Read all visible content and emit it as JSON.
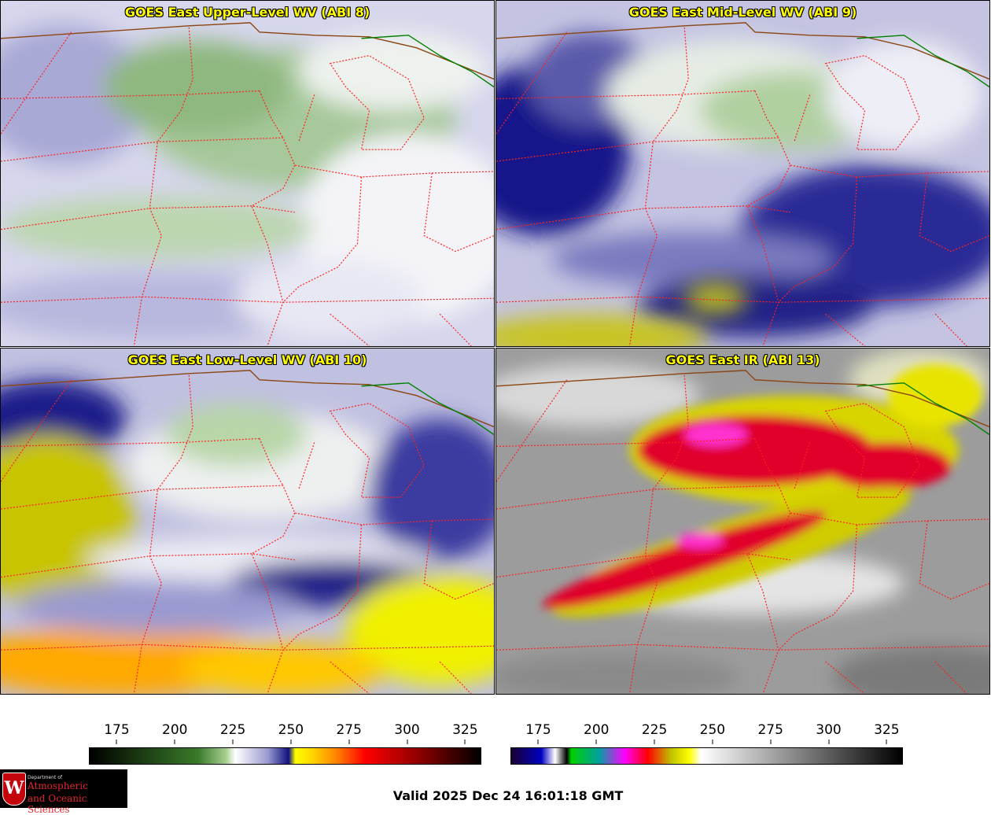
{
  "panels": [
    {
      "id": "ul",
      "title": "GOES East Upper-Level WV (ABI 8)"
    },
    {
      "id": "ml",
      "title": "GOES East Mid-Level WV (ABI 9)"
    },
    {
      "id": "ll",
      "title": "GOES East Low-Level WV (ABI 10)"
    },
    {
      "id": "ir",
      "title": "GOES East IR (ABI 13)"
    }
  ],
  "colorbars": {
    "wv": {
      "ticks": [
        "175",
        "200",
        "225",
        "250",
        "275",
        "300",
        "325"
      ],
      "tick_values": [
        175,
        200,
        225,
        250,
        275,
        300,
        325
      ],
      "range": [
        163,
        332
      ],
      "stops": [
        {
          "v": 163,
          "c": "#000000"
        },
        {
          "v": 185,
          "c": "#1b3a12"
        },
        {
          "v": 210,
          "c": "#3b7a2a"
        },
        {
          "v": 222,
          "c": "#a8d090"
        },
        {
          "v": 226,
          "c": "#ffffff"
        },
        {
          "v": 240,
          "c": "#9a9ad0"
        },
        {
          "v": 249,
          "c": "#101080"
        },
        {
          "v": 252,
          "c": "#ffff00"
        },
        {
          "v": 260,
          "c": "#ffd000"
        },
        {
          "v": 270,
          "c": "#ff8000"
        },
        {
          "v": 282,
          "c": "#ff0000"
        },
        {
          "v": 305,
          "c": "#900000"
        },
        {
          "v": 332,
          "c": "#000000"
        }
      ]
    },
    "ir": {
      "ticks": [
        "175",
        "200",
        "225",
        "250",
        "275",
        "300",
        "325"
      ],
      "tick_values": [
        175,
        200,
        225,
        250,
        275,
        300,
        325
      ],
      "range": [
        163,
        332
      ],
      "stops": [
        {
          "v": 163,
          "c": "#1a0030"
        },
        {
          "v": 176,
          "c": "#0000c0"
        },
        {
          "v": 182,
          "c": "#ffffff"
        },
        {
          "v": 187,
          "c": "#000000"
        },
        {
          "v": 189,
          "c": "#00d000"
        },
        {
          "v": 201,
          "c": "#00a0a0"
        },
        {
          "v": 212,
          "c": "#ff00ff"
        },
        {
          "v": 222,
          "c": "#ff0000"
        },
        {
          "v": 232,
          "c": "#c0c000"
        },
        {
          "v": 240,
          "c": "#ffff00"
        },
        {
          "v": 245,
          "c": "#ffffff"
        },
        {
          "v": 332,
          "c": "#000000"
        }
      ]
    }
  },
  "logo": {
    "dept": "Department of",
    "line1": "Atmospheric",
    "line2": "and Oceanic Sciences",
    "crest": "W"
  },
  "valid_time": "Valid 2025 Dec 24 16:01:18 GMT",
  "colors": {
    "state_borders": "#ff2020",
    "national_border": "#8b4513",
    "lake_border": "#008000",
    "title": "#ffff00"
  }
}
